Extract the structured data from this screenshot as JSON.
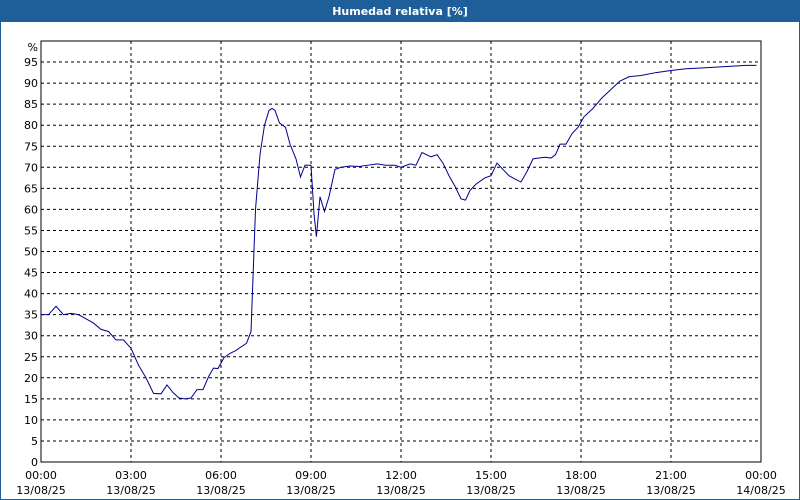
{
  "window": {
    "title": "Humedad relativa [%]"
  },
  "chart_data": {
    "type": "line",
    "title": "Humedad relativa [%]",
    "ylabel": "%",
    "xlabel": "",
    "ylim": [
      0,
      100
    ],
    "yticks": [
      0,
      5,
      10,
      15,
      20,
      25,
      30,
      35,
      40,
      45,
      50,
      55,
      60,
      65,
      70,
      75,
      80,
      85,
      90,
      95
    ],
    "xlim": [
      0,
      24
    ],
    "xticks": [
      {
        "t": 0,
        "time": "00:00",
        "date": "13/08/25"
      },
      {
        "t": 3,
        "time": "03:00",
        "date": "13/08/25"
      },
      {
        "t": 6,
        "time": "06:00",
        "date": "13/08/25"
      },
      {
        "t": 9,
        "time": "09:00",
        "date": "13/08/25"
      },
      {
        "t": 12,
        "time": "12:00",
        "date": "13/08/25"
      },
      {
        "t": 15,
        "time": "15:00",
        "date": "13/08/25"
      },
      {
        "t": 18,
        "time": "18:00",
        "date": "13/08/25"
      },
      {
        "t": 21,
        "time": "21:00",
        "date": "13/08/25"
      },
      {
        "t": 24,
        "time": "00:00",
        "date": "14/08/25"
      }
    ],
    "grid": true,
    "series": [
      {
        "color": "#00008b",
        "points": [
          [
            0.0,
            35
          ],
          [
            0.25,
            35
          ],
          [
            0.5,
            37
          ],
          [
            0.75,
            35
          ],
          [
            1.0,
            35.3
          ],
          [
            1.25,
            35
          ],
          [
            1.5,
            34
          ],
          [
            1.75,
            33
          ],
          [
            2.0,
            31.5
          ],
          [
            2.25,
            31
          ],
          [
            2.5,
            29
          ],
          [
            2.75,
            29
          ],
          [
            3.0,
            27
          ],
          [
            3.25,
            23
          ],
          [
            3.5,
            20
          ],
          [
            3.75,
            16.3
          ],
          [
            4.0,
            16.2
          ],
          [
            4.2,
            18.3
          ],
          [
            4.4,
            16.5
          ],
          [
            4.6,
            15.2
          ],
          [
            4.8,
            15.0
          ],
          [
            5.0,
            15.2
          ],
          [
            5.2,
            17.2
          ],
          [
            5.4,
            17.2
          ],
          [
            5.6,
            20.5
          ],
          [
            5.75,
            22.3
          ],
          [
            5.9,
            22.2
          ],
          [
            6.1,
            24.8
          ],
          [
            6.3,
            25.8
          ],
          [
            6.5,
            26.5
          ],
          [
            6.7,
            27.5
          ],
          [
            6.85,
            28.2
          ],
          [
            7.0,
            31
          ],
          [
            7.15,
            60
          ],
          [
            7.3,
            73
          ],
          [
            7.45,
            80
          ],
          [
            7.6,
            83.5
          ],
          [
            7.7,
            84.0
          ],
          [
            7.8,
            83.5
          ],
          [
            7.95,
            80.5
          ],
          [
            8.15,
            79.5
          ],
          [
            8.3,
            75.5
          ],
          [
            8.5,
            72
          ],
          [
            8.65,
            67.7
          ],
          [
            8.8,
            70.5
          ],
          [
            9.0,
            70.5
          ],
          [
            9.1,
            59
          ],
          [
            9.18,
            53.5
          ],
          [
            9.3,
            63
          ],
          [
            9.45,
            59.5
          ],
          [
            9.6,
            63
          ],
          [
            9.8,
            69.5
          ],
          [
            10.0,
            70
          ],
          [
            10.3,
            70.3
          ],
          [
            10.6,
            70.2
          ],
          [
            10.9,
            70.5
          ],
          [
            11.2,
            70.8
          ],
          [
            11.5,
            70.5
          ],
          [
            11.8,
            70.5
          ],
          [
            12.0,
            70.0
          ],
          [
            12.3,
            70.8
          ],
          [
            12.5,
            70.5
          ],
          [
            12.7,
            73.5
          ],
          [
            13.0,
            72.5
          ],
          [
            13.2,
            73
          ],
          [
            13.4,
            71
          ],
          [
            13.6,
            68
          ],
          [
            13.8,
            65.5
          ],
          [
            14.0,
            62.5
          ],
          [
            14.15,
            62.2
          ],
          [
            14.3,
            64.5
          ],
          [
            14.5,
            66
          ],
          [
            14.8,
            67.5
          ],
          [
            15.0,
            68
          ],
          [
            15.2,
            71
          ],
          [
            15.4,
            69.5
          ],
          [
            15.6,
            68
          ],
          [
            15.8,
            67.2
          ],
          [
            16.0,
            66.5
          ],
          [
            16.2,
            69
          ],
          [
            16.4,
            72
          ],
          [
            16.6,
            72.2
          ],
          [
            16.8,
            72.4
          ],
          [
            17.0,
            72.2
          ],
          [
            17.15,
            73
          ],
          [
            17.3,
            75.5
          ],
          [
            17.5,
            75.5
          ],
          [
            17.7,
            78
          ],
          [
            17.9,
            79.5
          ],
          [
            18.1,
            82
          ],
          [
            18.4,
            84
          ],
          [
            18.7,
            86.5
          ],
          [
            19.0,
            88.5
          ],
          [
            19.3,
            90.5
          ],
          [
            19.6,
            91.5
          ],
          [
            20.0,
            91.8
          ],
          [
            20.5,
            92.5
          ],
          [
            21.0,
            93
          ],
          [
            21.5,
            93.4
          ],
          [
            22.0,
            93.6
          ],
          [
            22.5,
            93.8
          ],
          [
            23.0,
            94.0
          ],
          [
            23.5,
            94.2
          ],
          [
            23.85,
            94.2
          ]
        ]
      }
    ]
  }
}
